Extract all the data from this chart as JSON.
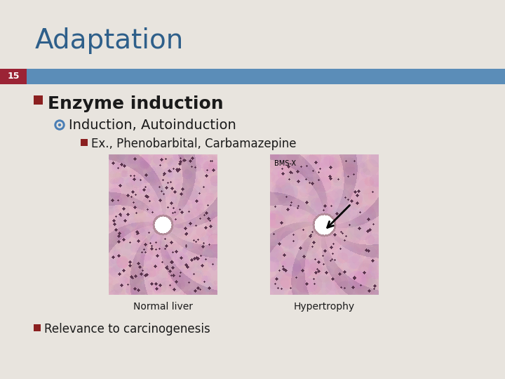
{
  "title": "Adaptation",
  "slide_number": "15",
  "bg_color": "#e8e4de",
  "title_color": "#2e5f8a",
  "bar_color": "#5b8db8",
  "slide_num_bg": "#9b2335",
  "bullet1": "Enzyme induction",
  "bullet2": "Induction, Autoinduction",
  "bullet3": "Ex., Phenobarbital, Carbamazepine",
  "bullet4": "Relevance to carcinogenesis",
  "label_left": "Normal liver",
  "label_right": "Hypertrophy",
  "bms_label": "BMS-X",
  "bullet_color": "#1a1a1a",
  "bullet_square_color": "#8b2020",
  "bullet_circle_color": "#4a7eb5",
  "title_fontsize": 28,
  "b1_fontsize": 18,
  "b2_fontsize": 14,
  "b3_fontsize": 12,
  "b4_fontsize": 12,
  "label_fontsize": 10
}
